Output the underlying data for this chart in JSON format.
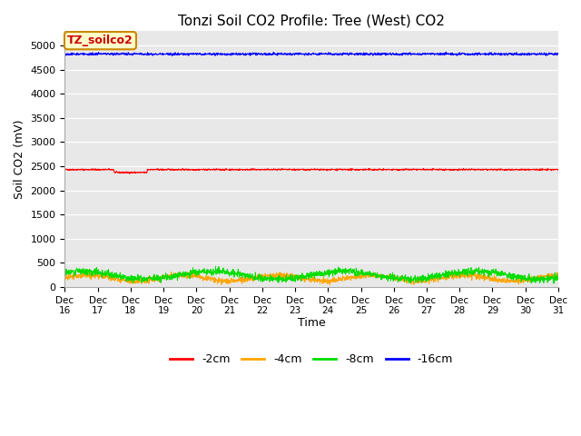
{
  "title": "Tonzi Soil CO2 Profile: Tree (West) CO2",
  "ylabel": "Soil CO2 (mV)",
  "xlabel": "Time",
  "watermark": "TZ_soilco2",
  "x_start": 16,
  "x_end": 31,
  "x_ticks": [
    16,
    17,
    18,
    19,
    20,
    21,
    22,
    23,
    24,
    25,
    26,
    27,
    28,
    29,
    30,
    31
  ],
  "x_tick_labels": [
    "Dec 16",
    "Dec 17",
    "Dec 18",
    "Dec 19",
    "Dec 20",
    "Dec 21",
    "Dec 22",
    "Dec 23",
    "Dec 24",
    "Dec 25",
    "Dec 26",
    "Dec 27",
    "Dec 28",
    "Dec 29",
    "Dec 30",
    "Dec 31"
  ],
  "ylim": [
    0,
    5300
  ],
  "y_ticks": [
    0,
    500,
    1000,
    1500,
    2000,
    2500,
    3000,
    3500,
    4000,
    4500,
    5000
  ],
  "series": {
    "-2cm": {
      "color": "#ff0000",
      "base": 2430,
      "noise_std": 8
    },
    "-4cm": {
      "color": "#ffa500",
      "base": 185,
      "noise_std": 30
    },
    "-8cm": {
      "color": "#00dd00",
      "base": 240,
      "noise_std": 35
    },
    "-16cm": {
      "color": "#0000ff",
      "base": 4820,
      "noise_std": 12
    }
  },
  "legend_labels": [
    "-2cm",
    "-4cm",
    "-8cm",
    "-16cm"
  ],
  "legend_colors": [
    "#ff0000",
    "#ffa500",
    "#00dd00",
    "#0000ff"
  ],
  "fig_bg_color": "#ffffff",
  "plot_bg_color": "#e8e8e8",
  "grid_color": "#ffffff",
  "watermark_bg": "#ffffcc",
  "watermark_border": "#cc8800",
  "watermark_fg": "#cc0000",
  "title_fontsize": 11,
  "tick_fontsize": 8,
  "ylabel_fontsize": 9,
  "xlabel_fontsize": 9
}
